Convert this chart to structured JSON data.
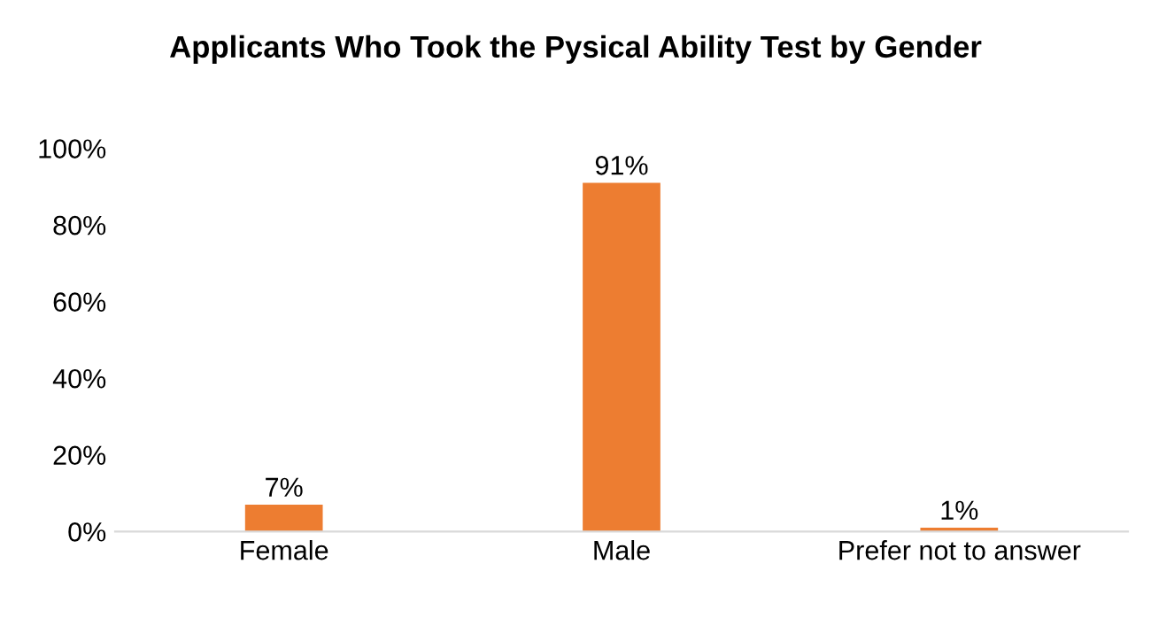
{
  "chart_data": {
    "type": "bar",
    "title": "Applicants Who Took the Pysical Ability Test by Gender",
    "categories": [
      "Female",
      "Male",
      "Prefer not to answer"
    ],
    "values": [
      7,
      91,
      1
    ],
    "value_labels": [
      "7%",
      "91%",
      "1%"
    ],
    "color": "#ed7d31",
    "ylim": [
      0,
      100
    ],
    "yticks": [
      {
        "value": 0,
        "label": "0%"
      },
      {
        "value": 20,
        "label": "20%"
      },
      {
        "value": 40,
        "label": "40%"
      },
      {
        "value": 60,
        "label": "60%"
      },
      {
        "value": 80,
        "label": "80%"
      },
      {
        "value": 100,
        "label": "100%"
      }
    ],
    "grid": false,
    "legend": false
  }
}
